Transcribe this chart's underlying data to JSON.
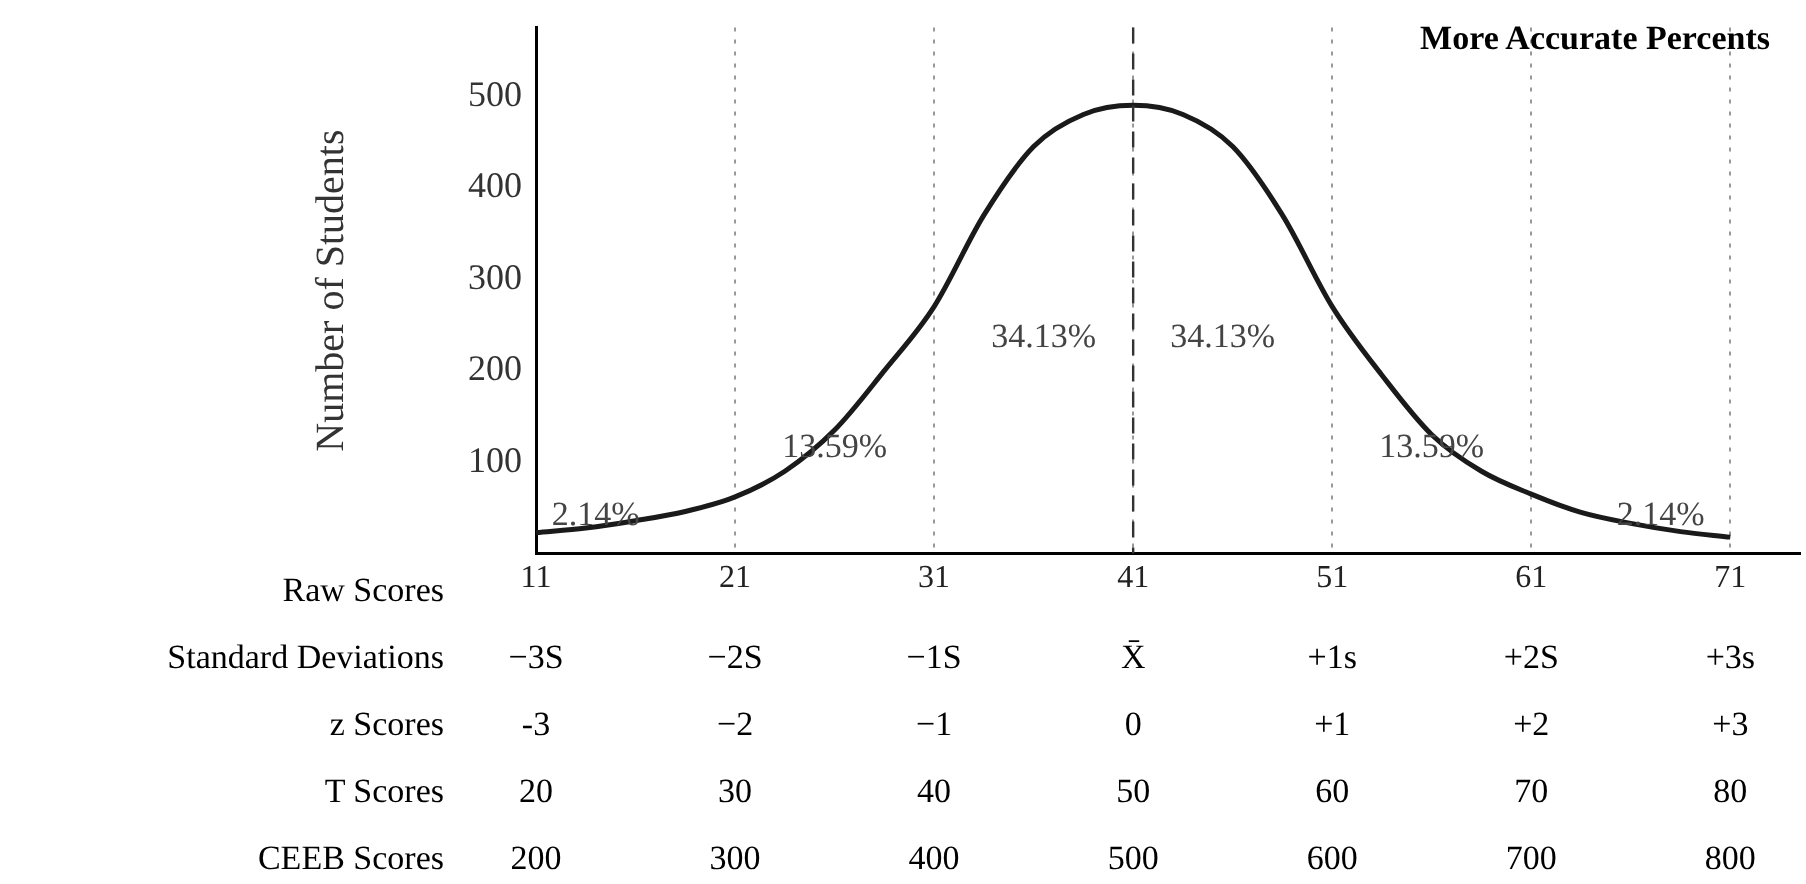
{
  "chart_data": {
    "type": "line",
    "title": "More Accurate Percents",
    "ylabel": "Number of Students",
    "x": [
      11,
      13.5,
      16,
      18.5,
      21,
      23.5,
      26,
      28.5,
      31,
      33.5,
      36,
      38.5,
      41,
      43.5,
      46,
      48.5,
      51,
      53.5,
      56,
      58.5,
      61,
      63.5,
      66,
      68.5,
      71
    ],
    "series": [
      {
        "color": "#1a1a1a",
        "values": [
          23,
          28,
          36,
          46,
          62,
          90,
          135,
          200,
          270,
          370,
          445,
          480,
          490,
          480,
          445,
          370,
          270,
          195,
          130,
          90,
          65,
          45,
          33,
          24,
          18
        ]
      }
    ],
    "xlim": [
      11,
      74.5
    ],
    "xticks": [
      11,
      21,
      31,
      41,
      51,
      61,
      71
    ],
    "ylim": [
      0,
      575
    ],
    "yticks": [
      100,
      200,
      300,
      400,
      500
    ],
    "grid": "x",
    "marker": "none",
    "line_style": "solid",
    "legend": false,
    "ref_lines": [
      {
        "axis": "x",
        "value": 41,
        "label": null,
        "line_style": "dashed",
        "color": "#333333"
      }
    ],
    "annotations": [
      "2.14%",
      "13.59%",
      "34.13%",
      "34.13%",
      "13.59%",
      "2.14%",
      "Raw Scores",
      "Standard Deviations",
      "−3S",
      "−2S",
      "−1S",
      "X̄",
      "+1s",
      "+2S",
      "+3s",
      "z Scores",
      "-3",
      "−2",
      "−1",
      "0",
      "+1",
      "+2",
      "+3",
      "T Scores",
      "20",
      "30",
      "40",
      "50",
      "60",
      "70",
      "80",
      "CEEB Scores",
      "200",
      "300",
      "400",
      "500",
      "600",
      "700",
      "800"
    ]
  }
}
